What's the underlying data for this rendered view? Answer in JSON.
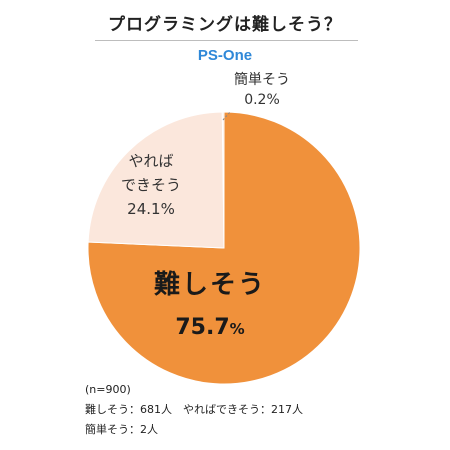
{
  "title": "プログラミングは難しそう？",
  "brand": "PS-One",
  "chart_data": {
    "type": "pie",
    "categories": [
      "難しそう",
      "やればできそう",
      "簡単そう"
    ],
    "values": [
      75.7,
      24.1,
      0.2
    ],
    "counts": [
      681,
      217,
      2
    ],
    "colors": [
      "#f0913b",
      "#fbe7dc",
      "#fbe7dc"
    ],
    "labels": {
      "hard": {
        "name": "難しそう",
        "value": "75.7",
        "unit": "%"
      },
      "doable": {
        "line1": "やれば",
        "line2": "できそう",
        "value": "24.1%"
      },
      "easy": {
        "name": "簡単そう",
        "value": "0.2%"
      }
    }
  },
  "notes": {
    "n": "(n=900)",
    "line1": "難しそう：681人　やればできそう：217人",
    "line2": "簡単そう：2人"
  }
}
